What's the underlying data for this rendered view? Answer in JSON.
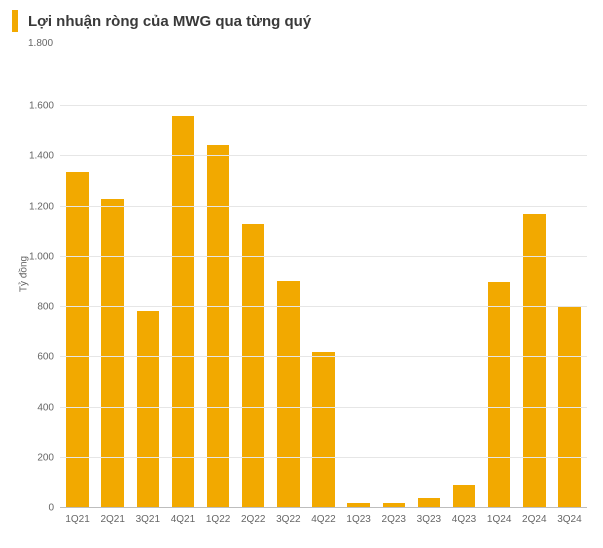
{
  "chart": {
    "type": "bar",
    "title": "Lợi nhuận ròng của MWG qua từng quý",
    "title_fontsize": 15,
    "title_color": "#3a3a3a",
    "accent_color": "#f2a900",
    "background_color": "#ffffff",
    "grid_color": "#e6e6e6",
    "baseline_color": "#bdbdbd",
    "text_color": "#666666",
    "label_fontsize": 10,
    "ylabel": "Tỷ đồng",
    "ylim": [
      0,
      1800
    ],
    "ytick_step": 200,
    "yticks": [
      0,
      200,
      400,
      600,
      800,
      1000,
      1200,
      1400,
      1600,
      1800
    ],
    "ytick_labels": [
      "0",
      "200",
      "400",
      "600",
      "800",
      "1.000",
      "1.200",
      "1.400",
      "1.600",
      "1.800"
    ],
    "categories": [
      "1Q21",
      "2Q21",
      "3Q21",
      "4Q21",
      "1Q22",
      "2Q22",
      "3Q22",
      "4Q22",
      "1Q23",
      "2Q23",
      "3Q23",
      "4Q23",
      "1Q24",
      "2Q24",
      "3Q24"
    ],
    "values": [
      1340,
      1230,
      785,
      1560,
      1445,
      1130,
      905,
      620,
      21,
      18,
      39,
      90,
      900,
      1170,
      800
    ],
    "bar_color": "#f2a900",
    "bar_width": 0.64
  }
}
